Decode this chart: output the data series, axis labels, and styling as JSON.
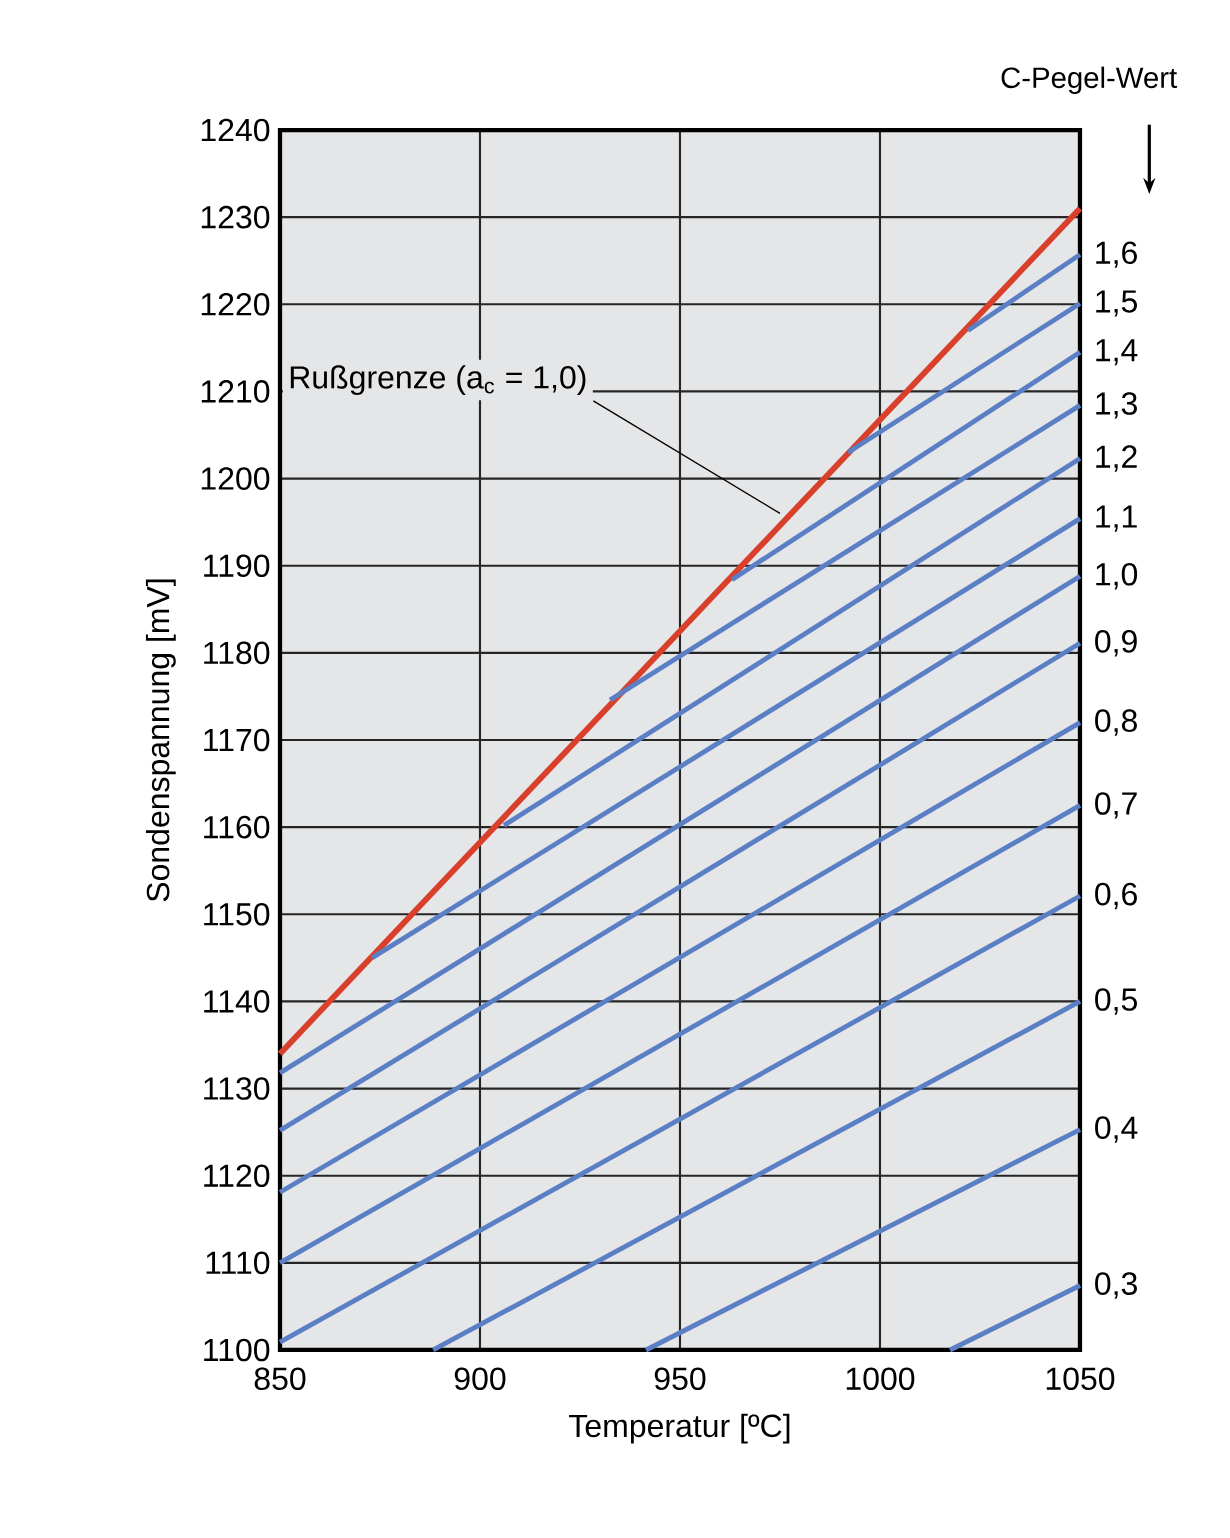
{
  "chart_data": {
    "type": "line",
    "xlabel": "Temperatur [ºC]",
    "ylabel": "Sondenspannung [mV]",
    "xlim": [
      850,
      1050
    ],
    "ylim": [
      1100,
      1240
    ],
    "xticks": [
      850,
      900,
      950,
      1000,
      1050
    ],
    "yticks": [
      1100,
      1110,
      1120,
      1130,
      1140,
      1150,
      1160,
      1170,
      1180,
      1190,
      1200,
      1210,
      1220,
      1230,
      1240
    ],
    "grid": true,
    "legend": false,
    "marker": "none",
    "line_style": "solid",
    "series": [
      {
        "color": "#d9402b",
        "x": [
          850,
          1050
        ],
        "values": [
          1134,
          1231
        ]
      },
      {
        "name": "1,6",
        "color": "#5b7fc4",
        "x": [
          1022,
          1050
        ],
        "values": [
          1217,
          1225.7
        ]
      },
      {
        "name": "1,5",
        "color": "#5b7fc4",
        "x": [
          992,
          1050
        ],
        "values": [
          1203,
          1220.1
        ]
      },
      {
        "name": "1,4",
        "color": "#5b7fc4",
        "x": [
          963,
          1050
        ],
        "values": [
          1188.4,
          1214.5
        ]
      },
      {
        "name": "1,3",
        "color": "#5b7fc4",
        "x": [
          932.5,
          1050
        ],
        "values": [
          1174.6,
          1208.4
        ]
      },
      {
        "name": "1,2",
        "color": "#5b7fc4",
        "x": [
          906,
          1050
        ],
        "values": [
          1160.2,
          1202.3
        ]
      },
      {
        "name": "1,1",
        "color": "#5b7fc4",
        "x": [
          873,
          1050
        ],
        "values": [
          1145,
          1195.4
        ]
      },
      {
        "name": "1,0",
        "color": "#5b7fc4",
        "x": [
          850,
          1050
        ],
        "values": [
          1131.8,
          1188.8
        ]
      },
      {
        "name": "0,9",
        "color": "#5b7fc4",
        "x": [
          850,
          1050
        ],
        "values": [
          1125.2,
          1181.1
        ]
      },
      {
        "name": "0,8",
        "color": "#5b7fc4",
        "x": [
          850,
          1050
        ],
        "values": [
          1118.1,
          1172
        ]
      },
      {
        "name": "0,7",
        "color": "#5b7fc4",
        "x": [
          850,
          1050
        ],
        "values": [
          1110,
          1162.5
        ]
      },
      {
        "name": "0,6",
        "color": "#5b7fc4",
        "x": [
          850,
          1050
        ],
        "values": [
          1100.9,
          1152.1
        ]
      },
      {
        "name": "0,5",
        "color": "#5b7fc4",
        "x": [
          888.3,
          1050
        ],
        "values": [
          1100,
          1140
        ]
      },
      {
        "name": "0,4",
        "color": "#5b7fc4",
        "x": [
          941.5,
          1050
        ],
        "values": [
          1100,
          1125.3
        ]
      },
      {
        "name": "0,3",
        "color": "#5b7fc4",
        "x": [
          1017.5,
          1050
        ],
        "values": [
          1100,
          1107.4
        ]
      }
    ],
    "annotations": [
      {
        "text": "Rußgrenze (a$_{c}$ = 1,0)",
        "x": 975,
        "y": 1196
      },
      "C-Pegel-Wert"
    ]
  }
}
